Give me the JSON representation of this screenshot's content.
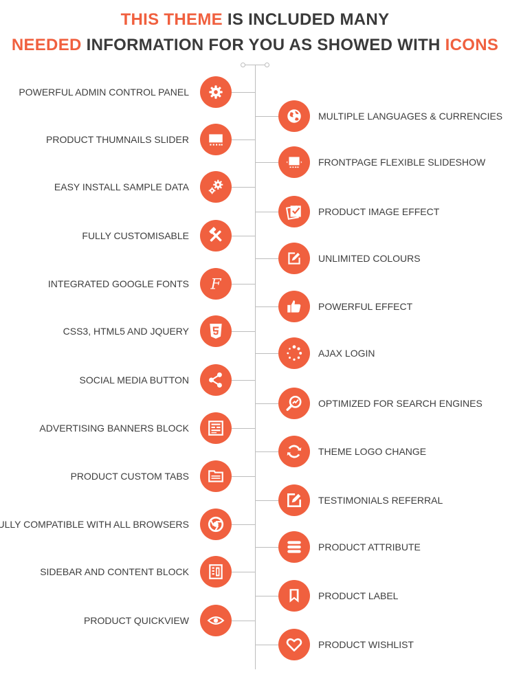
{
  "header": {
    "line1": {
      "accent": "THIS THEME",
      "rest": " IS INCLUDED MANY"
    },
    "line2": {
      "accent1": "NEEDED",
      "middle": " INFORMATION FOR YOU AS SHOWED WITH ",
      "accent2": "ICONS"
    }
  },
  "colors": {
    "accent": "#f0603f",
    "text": "#3a3a3a",
    "line": "#bdbdbd"
  },
  "left_features": [
    {
      "label": "POWERFUL ADMIN CONTROL PANEL",
      "icon": "gear-icon"
    },
    {
      "label": "PRODUCT THUMNAILS SLIDER",
      "icon": "slider-icon"
    },
    {
      "label": "EASY INSTALL SAMPLE DATA",
      "icon": "gears-icon"
    },
    {
      "label": "FULLY CUSTOMISABLE",
      "icon": "tools-icon"
    },
    {
      "label": "INTEGRATED GOOGLE FONTS",
      "icon": "font-icon"
    },
    {
      "label": "CSS3, HTML5 AND JQUERY",
      "icon": "html5-icon"
    },
    {
      "label": "SOCIAL MEDIA BUTTON",
      "icon": "share-icon"
    },
    {
      "label": "ADVERTISING BANNERS BLOCK",
      "icon": "banner-icon"
    },
    {
      "label": "PRODUCT CUSTOM TABS",
      "icon": "tabs-icon"
    },
    {
      "label": "FULLY COMPATIBLE WITH ALL BROWSERS",
      "icon": "browser-icon"
    },
    {
      "label": "SIDEBAR AND CONTENT BLOCK",
      "icon": "layout-icon"
    },
    {
      "label": "PRODUCT QUICKVIEW",
      "icon": "eye-icon"
    }
  ],
  "right_features": [
    {
      "label": "MULTIPLE LANGUAGES & CURRENCIES",
      "icon": "globe-icon"
    },
    {
      "label": "FRONTPAGE FLEXIBLE SLIDESHOW",
      "icon": "slideshow-icon"
    },
    {
      "label": "PRODUCT IMAGE EFFECT",
      "icon": "image-effect-icon"
    },
    {
      "label": "UNLIMITED COLOURS",
      "icon": "edit-icon"
    },
    {
      "label": "POWERFUL EFFECT",
      "icon": "thumbs-up-icon"
    },
    {
      "label": "AJAX LOGIN",
      "icon": "spinner-icon"
    },
    {
      "label": "OPTIMIZED FOR SEARCH ENGINES",
      "icon": "seo-icon"
    },
    {
      "label": "THEME LOGO CHANGE",
      "icon": "refresh-icon"
    },
    {
      "label": "TESTIMONIALS REFERRAL",
      "icon": "pencil-square-icon"
    },
    {
      "label": "PRODUCT ATTRIBUTE",
      "icon": "list-icon"
    },
    {
      "label": "PRODUCT LABEL",
      "icon": "bookmark-icon"
    },
    {
      "label": "PRODUCT WISHLIST",
      "icon": "heart-icon"
    }
  ]
}
